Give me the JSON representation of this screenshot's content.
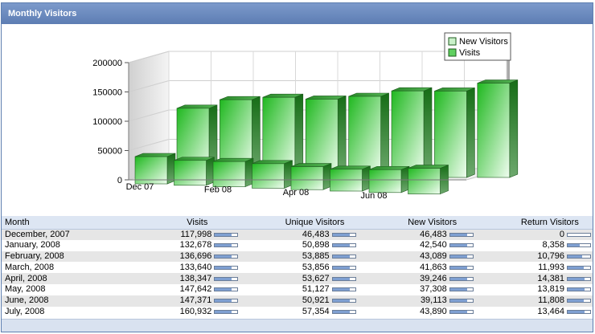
{
  "panel": {
    "title": "Monthly Visitors"
  },
  "chart_data": {
    "type": "bar",
    "categories": [
      "Dec 07",
      "Jan 08",
      "Feb 08",
      "Mar 08",
      "Apr 08",
      "May 08",
      "Jun 08",
      "Jul 08"
    ],
    "x_tick_labels": [
      "Dec 07",
      "",
      "Feb 08",
      "",
      "Apr 08",
      "",
      "Jun 08",
      ""
    ],
    "series": [
      {
        "name": "New Visitors",
        "values": [
          46483,
          42540,
          43089,
          41863,
          39246,
          37308,
          39113,
          43890
        ]
      },
      {
        "name": "Visits",
        "values": [
          117998,
          132678,
          136696,
          133640,
          138347,
          147642,
          147371,
          160932
        ]
      }
    ],
    "y_ticks": [
      "200000",
      "150000",
      "100000",
      "50000",
      "0"
    ],
    "ylim": [
      0,
      200000
    ],
    "grid": true,
    "legend_position": "top-right",
    "colors": {
      "bar": "#3cc43c",
      "bar_light": "#e9fbe9",
      "bar_edge": "#1e5b1e"
    }
  },
  "table": {
    "columns": [
      "Month",
      "Visits",
      "Unique Visitors",
      "New Visitors",
      "Return Visitors"
    ],
    "rows": [
      {
        "month": "December, 2007",
        "visits": "117,998",
        "unique": "46,483",
        "new": "46,483",
        "return": "0"
      },
      {
        "month": "January, 2008",
        "visits": "132,678",
        "unique": "50,898",
        "new": "42,540",
        "return": "8,358"
      },
      {
        "month": "February, 2008",
        "visits": "136,696",
        "unique": "53,885",
        "new": "43,089",
        "return": "10,796"
      },
      {
        "month": "March, 2008",
        "visits": "133,640",
        "unique": "53,856",
        "new": "41,863",
        "return": "11,993"
      },
      {
        "month": "April, 2008",
        "visits": "138,347",
        "unique": "53,627",
        "new": "39,246",
        "return": "14,381"
      },
      {
        "month": "May, 2008",
        "visits": "147,642",
        "unique": "51,127",
        "new": "37,308",
        "return": "13,819"
      },
      {
        "month": "June, 2008",
        "visits": "147,371",
        "unique": "50,921",
        "new": "39,113",
        "return": "11,808"
      },
      {
        "month": "July, 2008",
        "visits": "160,932",
        "unique": "57,354",
        "new": "43,890",
        "return": "13,464"
      }
    ],
    "bar_fractions": {
      "visits": [
        0.75,
        0.75,
        0.75,
        0.75,
        0.75,
        0.75,
        0.75,
        0.75
      ],
      "unique": [
        0.75,
        0.75,
        0.75,
        0.75,
        0.75,
        0.75,
        0.75,
        0.75
      ],
      "new": [
        0.75,
        0.75,
        0.75,
        0.75,
        0.75,
        0.75,
        0.75,
        0.75
      ],
      "return": [
        0,
        0.55,
        0.65,
        0.7,
        0.75,
        0.75,
        0.7,
        0.75
      ]
    }
  }
}
